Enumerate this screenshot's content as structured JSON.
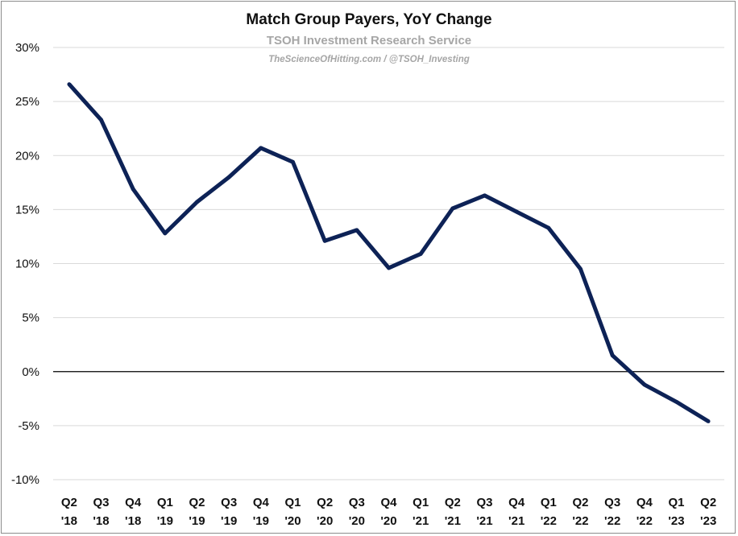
{
  "chart_data": {
    "type": "line",
    "title": "Match Group Payers, YoY Change",
    "subtitle": "TSOH Investment Research Service",
    "byline": "TheScienceOfHitting.com / @TSOH_Investing",
    "xlabel": "",
    "ylabel": "",
    "ylim": [
      -10,
      30
    ],
    "yticks": [
      -10,
      -5,
      0,
      5,
      10,
      15,
      20,
      25,
      30
    ],
    "ytick_labels": [
      "-10%",
      "-5%",
      "0%",
      "5%",
      "10%",
      "15%",
      "20%",
      "25%",
      "30%"
    ],
    "grid": true,
    "legend": "none",
    "categories": [
      [
        "Q2",
        "'18"
      ],
      [
        "Q3",
        "'18"
      ],
      [
        "Q4",
        "'18"
      ],
      [
        "Q1",
        "'19"
      ],
      [
        "Q2",
        "'19"
      ],
      [
        "Q3",
        "'19"
      ],
      [
        "Q4",
        "'19"
      ],
      [
        "Q1",
        "'20"
      ],
      [
        "Q2",
        "'20"
      ],
      [
        "Q3",
        "'20"
      ],
      [
        "Q4",
        "'20"
      ],
      [
        "Q1",
        "'21"
      ],
      [
        "Q2",
        "'21"
      ],
      [
        "Q3",
        "'21"
      ],
      [
        "Q4",
        "'21"
      ],
      [
        "Q1",
        "'22"
      ],
      [
        "Q2",
        "'22"
      ],
      [
        "Q3",
        "'22"
      ],
      [
        "Q4",
        "'22"
      ],
      [
        "Q1",
        "'23"
      ],
      [
        "Q2",
        "'23"
      ]
    ],
    "series": [
      {
        "values": [
          26.6,
          23.3,
          16.9,
          12.8,
          15.7,
          18.0,
          20.7,
          19.4,
          12.1,
          13.1,
          9.6,
          10.9,
          15.1,
          16.3,
          14.8,
          13.3,
          9.5,
          1.5,
          -1.2,
          -2.8,
          -4.6
        ],
        "color": "#0d2256"
      }
    ],
    "colors": {
      "line": "#0d2256",
      "grid": "#d9d9d9",
      "zero_line": "#000000"
    }
  }
}
